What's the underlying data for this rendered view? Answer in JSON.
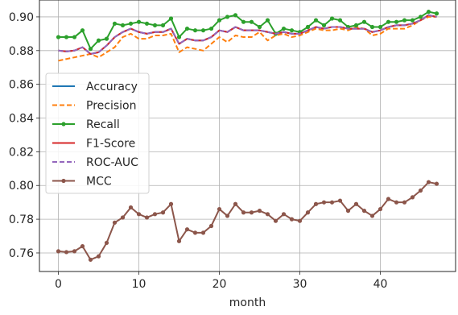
{
  "chart_data": {
    "type": "line",
    "title": "",
    "xlabel": "month",
    "ylabel": "",
    "xlim": [
      -2.35,
      49.35
    ],
    "ylim": [
      0.749,
      0.91
    ],
    "x_ticks": [
      0,
      10,
      20,
      30,
      40
    ],
    "y_ticks": [
      0.76,
      0.78,
      0.8,
      0.82,
      0.84,
      0.86,
      0.88,
      0.9
    ],
    "y_tick_labels": [
      "0.76",
      "0.78",
      "0.80",
      "0.82",
      "0.84",
      "0.86",
      "0.88",
      "0.90"
    ],
    "grid": true,
    "legend_position": "center-left",
    "x": [
      0,
      1,
      2,
      3,
      4,
      5,
      6,
      7,
      8,
      9,
      10,
      11,
      12,
      13,
      14,
      15,
      16,
      17,
      18,
      19,
      20,
      21,
      22,
      23,
      24,
      25,
      26,
      27,
      28,
      29,
      30,
      31,
      32,
      33,
      34,
      35,
      36,
      37,
      38,
      39,
      40,
      41,
      42,
      43,
      44,
      45,
      46,
      47
    ],
    "series": [
      {
        "name": "Accuracy",
        "color": "#1f77b4",
        "style": "solid",
        "marker": false,
        "values": [
          0.88,
          0.8795,
          0.88,
          0.882,
          0.878,
          0.879,
          0.883,
          0.888,
          0.891,
          0.893,
          0.891,
          0.89,
          0.891,
          0.891,
          0.893,
          0.884,
          0.887,
          0.886,
          0.886,
          0.888,
          0.892,
          0.891,
          0.894,
          0.892,
          0.892,
          0.892,
          0.891,
          0.89,
          0.891,
          0.89,
          0.89,
          0.892,
          0.894,
          0.893,
          0.894,
          0.894,
          0.893,
          0.893,
          0.893,
          0.891,
          0.892,
          0.894,
          0.895,
          0.895,
          0.896,
          0.898,
          0.901,
          0.9
        ]
      },
      {
        "name": "Precision",
        "color": "#ff7f0e",
        "style": "dashed",
        "marker": false,
        "values": [
          0.874,
          0.875,
          0.876,
          0.877,
          0.878,
          0.876,
          0.879,
          0.882,
          0.888,
          0.89,
          0.887,
          0.887,
          0.889,
          0.889,
          0.89,
          0.879,
          0.882,
          0.881,
          0.88,
          0.884,
          0.888,
          0.885,
          0.889,
          0.888,
          0.888,
          0.891,
          0.886,
          0.889,
          0.89,
          0.888,
          0.889,
          0.891,
          0.893,
          0.892,
          0.892,
          0.893,
          0.892,
          0.894,
          0.893,
          0.889,
          0.89,
          0.893,
          0.893,
          0.893,
          0.895,
          0.898,
          0.9,
          0.9
        ]
      },
      {
        "name": "Recall",
        "color": "#2ca02c",
        "style": "solid",
        "marker": true,
        "values": [
          0.888,
          0.888,
          0.888,
          0.892,
          0.881,
          0.886,
          0.887,
          0.896,
          0.895,
          0.896,
          0.897,
          0.896,
          0.895,
          0.895,
          0.899,
          0.888,
          0.893,
          0.892,
          0.892,
          0.893,
          0.898,
          0.9,
          0.901,
          0.897,
          0.897,
          0.894,
          0.898,
          0.89,
          0.893,
          0.892,
          0.891,
          0.894,
          0.898,
          0.895,
          0.899,
          0.898,
          0.894,
          0.895,
          0.897,
          0.894,
          0.894,
          0.897,
          0.897,
          0.898,
          0.898,
          0.9,
          0.903,
          0.902
        ]
      },
      {
        "name": "F1-Score",
        "color": "#d62728",
        "style": "solid",
        "marker": false,
        "values": [
          0.88,
          0.8795,
          0.88,
          0.882,
          0.878,
          0.879,
          0.883,
          0.888,
          0.891,
          0.893,
          0.891,
          0.89,
          0.891,
          0.891,
          0.893,
          0.884,
          0.887,
          0.886,
          0.886,
          0.888,
          0.892,
          0.891,
          0.894,
          0.892,
          0.892,
          0.892,
          0.891,
          0.89,
          0.891,
          0.89,
          0.89,
          0.892,
          0.894,
          0.893,
          0.894,
          0.894,
          0.893,
          0.893,
          0.893,
          0.891,
          0.892,
          0.894,
          0.895,
          0.895,
          0.896,
          0.898,
          0.901,
          0.9
        ]
      },
      {
        "name": "ROC-AUC",
        "color": "#9467bd",
        "style": "dashed",
        "marker": false,
        "values": [
          0.88,
          0.8795,
          0.88,
          0.882,
          0.878,
          0.879,
          0.883,
          0.888,
          0.891,
          0.893,
          0.891,
          0.89,
          0.891,
          0.891,
          0.893,
          0.884,
          0.887,
          0.886,
          0.886,
          0.888,
          0.892,
          0.891,
          0.894,
          0.892,
          0.892,
          0.892,
          0.891,
          0.89,
          0.891,
          0.89,
          0.89,
          0.892,
          0.894,
          0.893,
          0.894,
          0.894,
          0.893,
          0.893,
          0.893,
          0.891,
          0.892,
          0.894,
          0.895,
          0.895,
          0.896,
          0.898,
          0.901,
          0.9
        ]
      },
      {
        "name": "MCC",
        "color": "#8c564b",
        "style": "solid",
        "marker": true,
        "values": [
          0.761,
          0.7605,
          0.761,
          0.764,
          0.756,
          0.758,
          0.766,
          0.778,
          0.781,
          0.787,
          0.783,
          0.781,
          0.783,
          0.784,
          0.789,
          0.767,
          0.774,
          0.772,
          0.772,
          0.776,
          0.786,
          0.782,
          0.789,
          0.784,
          0.784,
          0.785,
          0.783,
          0.779,
          0.783,
          0.78,
          0.779,
          0.784,
          0.789,
          0.79,
          0.79,
          0.791,
          0.785,
          0.789,
          0.785,
          0.782,
          0.786,
          0.792,
          0.79,
          0.79,
          0.793,
          0.797,
          0.802,
          0.801
        ]
      }
    ]
  }
}
